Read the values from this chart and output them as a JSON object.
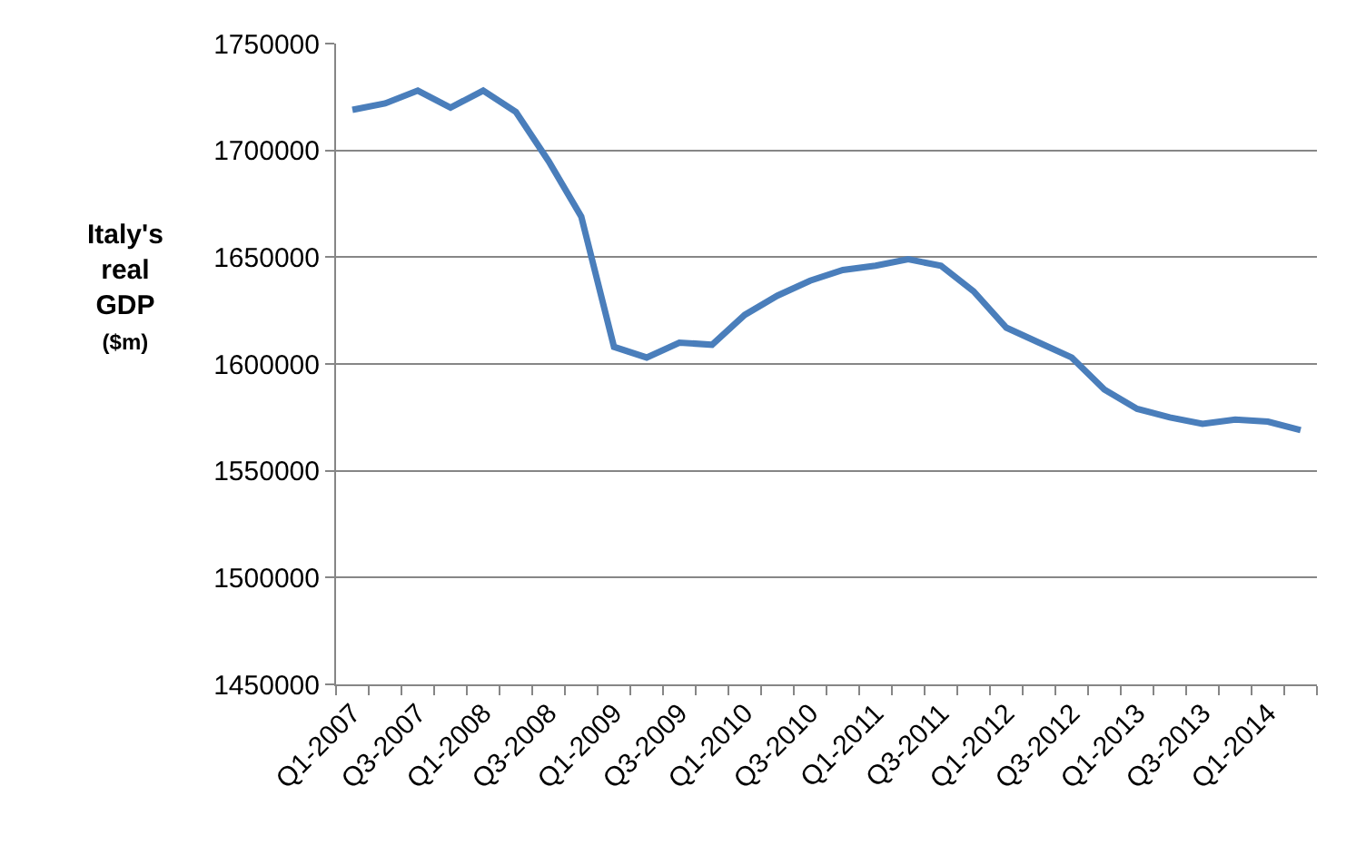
{
  "chart_data": {
    "type": "line",
    "ylabel": "Italy's real GDP ($m)",
    "categories": [
      "Q1-2007",
      null,
      "Q3-2007",
      null,
      "Q1-2008",
      null,
      "Q3-2008",
      null,
      "Q1-2009",
      null,
      "Q3-2009",
      null,
      "Q1-2010",
      null,
      "Q3-2010",
      null,
      "Q1-2011",
      null,
      "Q3-2011",
      null,
      "Q1-2012",
      null,
      "Q3-2012",
      null,
      "Q1-2013",
      null,
      "Q3-2013",
      null,
      "Q1-2014",
      null
    ],
    "series": [
      {
        "color": "#4a7ebb",
        "values": [
          1719000,
          1722000,
          1728000,
          1720000,
          1728000,
          1718000,
          1695000,
          1669000,
          1608000,
          1603000,
          1610000,
          1609000,
          1623000,
          1632000,
          1639000,
          1644000,
          1646000,
          1649000,
          1646000,
          1634000,
          1617000,
          1610000,
          1603000,
          1588000,
          1579000,
          1575000,
          1572000,
          1574000,
          1573000,
          1569000
        ]
      }
    ],
    "ylim": [
      1450000,
      1750000
    ],
    "yticks": [
      1450000,
      1500000,
      1550000,
      1600000,
      1650000,
      1700000,
      1750000
    ],
    "grid": "y",
    "line_style": "solid"
  }
}
